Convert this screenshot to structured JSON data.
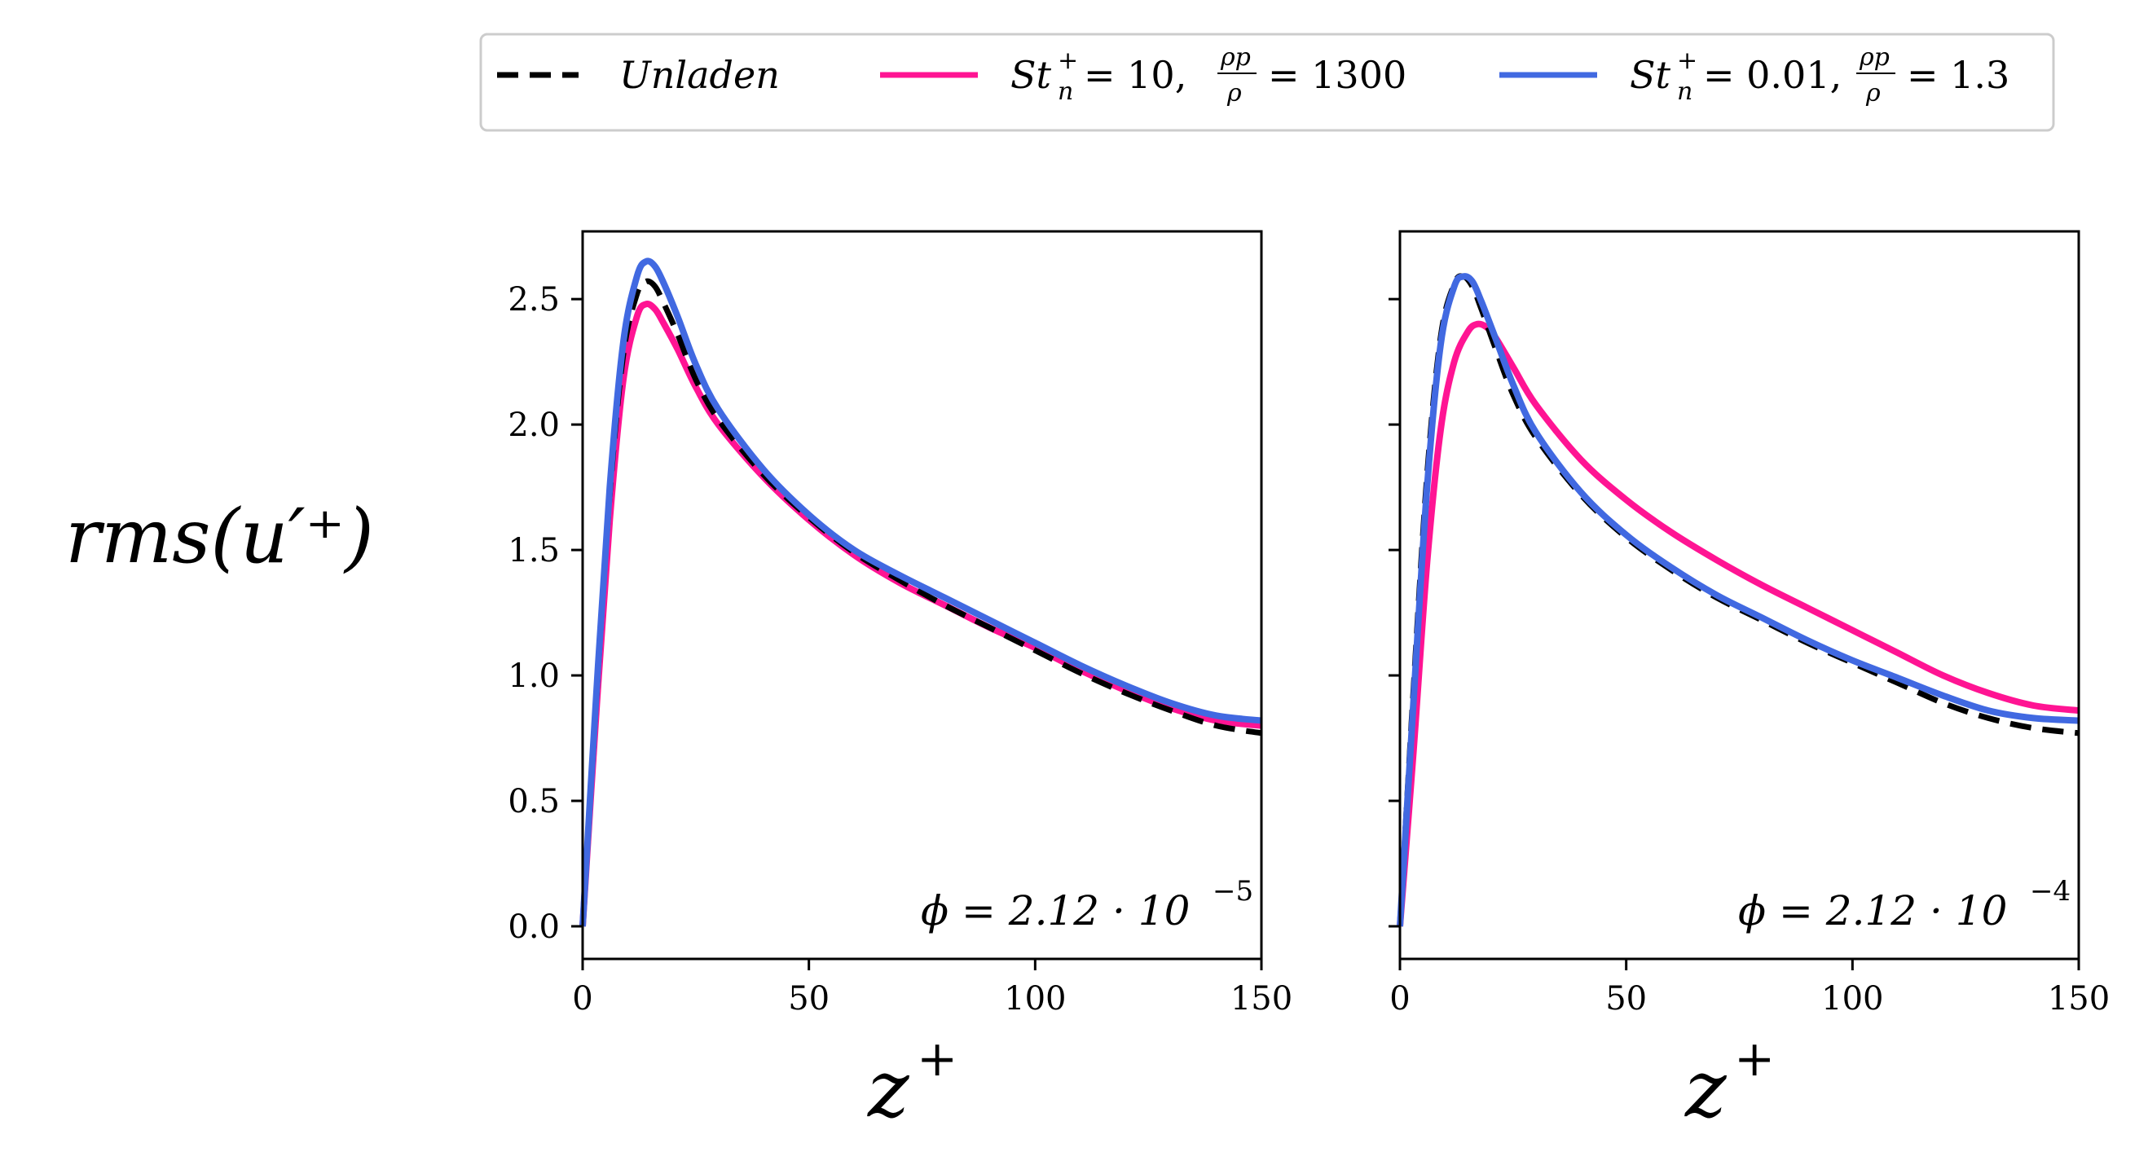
{
  "chart_data": [
    {
      "type": "line",
      "panel": "left",
      "annotation": {
        "base": "ϕ = 2.12 · 10",
        "exponent": "−5"
      },
      "xlabel": {
        "base": "z",
        "sup": "+"
      },
      "ylabel": "rms(u′⁺)",
      "xlim": [
        0,
        150
      ],
      "ylim": [
        -0.13,
        2.77
      ],
      "xticks": [
        0,
        50,
        100,
        150
      ],
      "yticks": [
        0.0,
        0.5,
        1.0,
        1.5,
        2.0,
        2.5
      ],
      "xtick_labels": [
        "0",
        "50",
        "100",
        "150"
      ],
      "ytick_labels": [
        "0.0",
        "0.5",
        "1.0",
        "1.5",
        "2.0",
        "2.5"
      ],
      "series": [
        {
          "name": "Unladen",
          "color": "#000000",
          "style": "dashed",
          "x": [
            0,
            3,
            6,
            9,
            12,
            14,
            16,
            18,
            21,
            25,
            30,
            40,
            50,
            60,
            70,
            80,
            90,
            100,
            110,
            120,
            130,
            140,
            150
          ],
          "y": [
            0.0,
            0.9,
            1.72,
            2.28,
            2.52,
            2.57,
            2.55,
            2.48,
            2.36,
            2.18,
            2.02,
            1.8,
            1.63,
            1.49,
            1.38,
            1.28,
            1.19,
            1.1,
            1.01,
            0.93,
            0.86,
            0.8,
            0.77
          ]
        },
        {
          "name": "St_n+ = 10, ρp/ρ = 1300",
          "color": "#ff1493",
          "style": "solid",
          "x": [
            0,
            3,
            6,
            9,
            12,
            14,
            16,
            18,
            21,
            25,
            30,
            40,
            50,
            60,
            70,
            80,
            90,
            100,
            110,
            120,
            130,
            140,
            150
          ],
          "y": [
            0.0,
            0.85,
            1.62,
            2.18,
            2.43,
            2.48,
            2.46,
            2.4,
            2.3,
            2.15,
            2.0,
            1.79,
            1.62,
            1.48,
            1.37,
            1.28,
            1.19,
            1.11,
            1.02,
            0.94,
            0.87,
            0.82,
            0.8
          ]
        },
        {
          "name": "St_n+ = 0.01, ρp/ρ = 1.3",
          "color": "#4169e1",
          "style": "solid",
          "x": [
            0,
            3,
            6,
            9,
            12,
            14,
            16,
            18,
            21,
            25,
            30,
            40,
            50,
            60,
            70,
            80,
            90,
            100,
            110,
            120,
            130,
            140,
            150
          ],
          "y": [
            0.0,
            0.92,
            1.75,
            2.33,
            2.59,
            2.65,
            2.63,
            2.56,
            2.43,
            2.24,
            2.06,
            1.82,
            1.64,
            1.5,
            1.4,
            1.31,
            1.22,
            1.13,
            1.04,
            0.96,
            0.89,
            0.84,
            0.82
          ]
        }
      ]
    },
    {
      "type": "line",
      "panel": "right",
      "annotation": {
        "base": "ϕ = 2.12 · 10",
        "exponent": "−4"
      },
      "xlabel": {
        "base": "z",
        "sup": "+"
      },
      "xlim": [
        0,
        150
      ],
      "ylim": [
        -0.13,
        2.77
      ],
      "xticks": [
        0,
        50,
        100,
        150
      ],
      "yticks": [
        0.0,
        0.5,
        1.0,
        1.5,
        2.0,
        2.5
      ],
      "xtick_labels": [
        "0",
        "50",
        "100",
        "150"
      ],
      "series": [
        {
          "name": "Unladen",
          "color": "#000000",
          "style": "dashed",
          "x": [
            0,
            3,
            6,
            9,
            12,
            14,
            16,
            18,
            21,
            25,
            30,
            40,
            50,
            60,
            70,
            80,
            90,
            100,
            110,
            120,
            130,
            140,
            150
          ],
          "y": [
            0.0,
            0.95,
            1.8,
            2.35,
            2.56,
            2.59,
            2.55,
            2.46,
            2.31,
            2.12,
            1.95,
            1.72,
            1.55,
            1.42,
            1.31,
            1.22,
            1.13,
            1.05,
            0.97,
            0.89,
            0.83,
            0.79,
            0.77
          ]
        },
        {
          "name": "St_n+ = 10, ρp/ρ = 1300",
          "color": "#ff1493",
          "style": "solid",
          "x": [
            0,
            3,
            6,
            9,
            12,
            15,
            17,
            19,
            21,
            25,
            30,
            40,
            50,
            60,
            70,
            80,
            90,
            100,
            110,
            120,
            130,
            140,
            150
          ],
          "y": [
            0.0,
            0.7,
            1.45,
            1.98,
            2.25,
            2.37,
            2.4,
            2.39,
            2.35,
            2.23,
            2.08,
            1.86,
            1.7,
            1.57,
            1.46,
            1.36,
            1.27,
            1.18,
            1.09,
            1.0,
            0.93,
            0.88,
            0.86
          ]
        },
        {
          "name": "St_n+ = 0.01, ρp/ρ = 1.3",
          "color": "#4169e1",
          "style": "solid",
          "x": [
            0,
            3,
            6,
            9,
            12,
            14,
            16,
            18,
            21,
            25,
            30,
            40,
            50,
            60,
            70,
            80,
            90,
            100,
            110,
            120,
            130,
            140,
            150
          ],
          "y": [
            0.0,
            0.9,
            1.75,
            2.32,
            2.55,
            2.59,
            2.57,
            2.49,
            2.35,
            2.16,
            1.97,
            1.73,
            1.56,
            1.43,
            1.32,
            1.23,
            1.14,
            1.06,
            0.99,
            0.92,
            0.86,
            0.83,
            0.82
          ]
        }
      ]
    }
  ],
  "legend": {
    "placement": "top-center",
    "entries": [
      {
        "label": "Unladen",
        "color": "#000000",
        "style": "dashed"
      },
      {
        "label_main": "St",
        "label_sub": "n",
        "label_sup": "+",
        "label_rest": "= 10,",
        "frac_num": "ρp",
        "frac_den": "ρ",
        "label_tail": "= 1300",
        "color": "#ff1493",
        "style": "solid"
      },
      {
        "label_main": "St",
        "label_sub": "n",
        "label_sup": "+",
        "label_rest": "= 0.01,",
        "frac_num": "ρp",
        "frac_den": "ρ",
        "label_tail": "= 1.3",
        "color": "#4169e1",
        "style": "solid"
      }
    ]
  }
}
